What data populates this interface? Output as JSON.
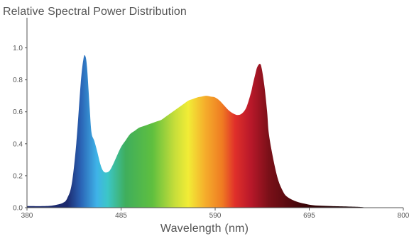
{
  "chart_data": {
    "type": "area",
    "title": "Relative Spectral Power Distribution",
    "xlabel": "Wavelength (nm)",
    "ylabel": "",
    "xlim": [
      380,
      800
    ],
    "ylim": [
      0,
      1.1
    ],
    "x_ticks": [
      380,
      485,
      590,
      695,
      800
    ],
    "y_ticks": [
      0.0,
      0.2,
      0.4,
      0.6,
      0.8,
      1.0
    ],
    "y_tick_labels": [
      "0.0",
      "0.2",
      "0.4",
      "0.6",
      "0.8",
      "1.0"
    ],
    "grid": false,
    "legend": "none",
    "fill": "spectral gradient (blue to dark red)",
    "x": [
      380,
      400,
      410,
      420,
      425,
      430,
      435,
      440,
      443,
      445,
      447,
      450,
      452,
      455,
      458,
      462,
      465,
      468,
      472,
      476,
      480,
      485,
      490,
      495,
      500,
      505,
      510,
      515,
      520,
      525,
      530,
      535,
      540,
      545,
      550,
      555,
      560,
      565,
      570,
      575,
      580,
      585,
      590,
      595,
      600,
      605,
      610,
      615,
      620,
      625,
      630,
      632,
      635,
      637,
      640,
      642,
      645,
      648,
      650,
      655,
      660,
      665,
      670,
      680,
      690,
      700,
      720,
      750,
      760,
      780,
      800
    ],
    "y": [
      0.01,
      0.01,
      0.015,
      0.03,
      0.06,
      0.15,
      0.4,
      0.78,
      0.93,
      0.95,
      0.88,
      0.62,
      0.47,
      0.42,
      0.36,
      0.27,
      0.23,
      0.22,
      0.23,
      0.27,
      0.32,
      0.38,
      0.42,
      0.46,
      0.48,
      0.5,
      0.51,
      0.52,
      0.53,
      0.54,
      0.55,
      0.57,
      0.59,
      0.61,
      0.63,
      0.65,
      0.67,
      0.68,
      0.69,
      0.695,
      0.7,
      0.695,
      0.69,
      0.67,
      0.64,
      0.61,
      0.59,
      0.58,
      0.59,
      0.63,
      0.72,
      0.77,
      0.84,
      0.88,
      0.9,
      0.87,
      0.76,
      0.6,
      0.46,
      0.3,
      0.18,
      0.11,
      0.07,
      0.04,
      0.025,
      0.015,
      0.01,
      0.005,
      0.0,
      0.0,
      0.0
    ],
    "colors": {
      "axis": "#555555",
      "text": "#555555",
      "gradient": [
        {
          "nm": 425,
          "color": "#1c2a6e"
        },
        {
          "nm": 440,
          "color": "#2a63b5"
        },
        {
          "nm": 458,
          "color": "#3fb3e8"
        },
        {
          "nm": 470,
          "color": "#3cc6c7"
        },
        {
          "nm": 490,
          "color": "#3fae5c"
        },
        {
          "nm": 520,
          "color": "#5fbf3f"
        },
        {
          "nm": 545,
          "color": "#c7de3a"
        },
        {
          "nm": 560,
          "color": "#f2ec36"
        },
        {
          "nm": 578,
          "color": "#f5b02c"
        },
        {
          "nm": 598,
          "color": "#ef7b22"
        },
        {
          "nm": 612,
          "color": "#e0302a"
        },
        {
          "nm": 630,
          "color": "#b8182a"
        },
        {
          "nm": 650,
          "color": "#7a1018"
        },
        {
          "nm": 690,
          "color": "#3a0508"
        },
        {
          "nm": 740,
          "color": "#1a0205"
        }
      ]
    }
  }
}
